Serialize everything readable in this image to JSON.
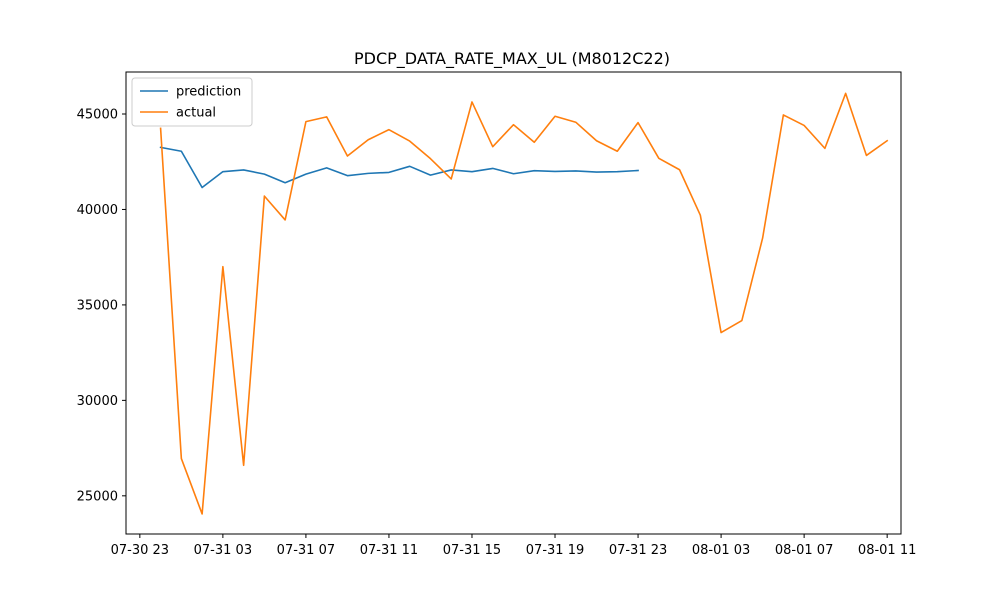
{
  "chart_data": {
    "type": "line",
    "title": "PDCP_DATA_RATE_MAX_UL (M8012C22)",
    "xlabel": "",
    "ylabel": "",
    "x_ticks": [
      "07-30 23",
      "07-31 03",
      "07-31 07",
      "07-31 11",
      "07-31 15",
      "07-31 19",
      "07-31 23",
      "08-01 03",
      "08-01 07",
      "08-01 11"
    ],
    "y_ticks": [
      25000,
      30000,
      35000,
      40000,
      45000
    ],
    "xlim": [
      "2023-07-30T22:20",
      "2023-08-01T11:40"
    ],
    "ylim": [
      23000,
      47200
    ],
    "legend_position": "upper-left",
    "series": [
      {
        "name": "prediction",
        "color": "#1f77b4",
        "x": [
          "2023-07-31T00:00",
          "2023-07-31T01:00",
          "2023-07-31T02:00",
          "2023-07-31T03:00",
          "2023-07-31T04:00",
          "2023-07-31T05:00",
          "2023-07-31T06:00",
          "2023-07-31T07:00",
          "2023-07-31T08:00",
          "2023-07-31T09:00",
          "2023-07-31T10:00",
          "2023-07-31T11:00",
          "2023-07-31T12:00",
          "2023-07-31T13:00",
          "2023-07-31T14:00",
          "2023-07-31T15:00",
          "2023-07-31T16:00",
          "2023-07-31T17:00",
          "2023-07-31T18:00",
          "2023-07-31T19:00",
          "2023-07-31T20:00",
          "2023-07-31T21:00",
          "2023-07-31T22:00",
          "2023-07-31T23:00"
        ],
        "values": [
          43250,
          43050,
          41150,
          41980,
          42070,
          41850,
          41400,
          41850,
          42180,
          41770,
          41890,
          41940,
          42260,
          41800,
          42070,
          41980,
          42150,
          41870,
          42030,
          41990,
          42020,
          41960,
          41980,
          42040
        ]
      },
      {
        "name": "actual",
        "color": "#ff7f0e",
        "x": [
          "2023-07-31T00:00",
          "2023-07-31T01:00",
          "2023-07-31T02:00",
          "2023-07-31T03:00",
          "2023-07-31T04:00",
          "2023-07-31T05:00",
          "2023-07-31T06:00",
          "2023-07-31T07:00",
          "2023-07-31T08:00",
          "2023-07-31T09:00",
          "2023-07-31T10:00",
          "2023-07-31T11:00",
          "2023-07-31T12:00",
          "2023-07-31T13:00",
          "2023-07-31T14:00",
          "2023-07-31T15:00",
          "2023-07-31T16:00",
          "2023-07-31T17:00",
          "2023-07-31T18:00",
          "2023-07-31T19:00",
          "2023-07-31T20:00",
          "2023-07-31T21:00",
          "2023-07-31T22:00",
          "2023-07-31T23:00",
          "2023-08-01T00:00",
          "2023-08-01T01:00",
          "2023-08-01T02:00",
          "2023-08-01T03:00",
          "2023-08-01T04:00",
          "2023-08-01T05:00",
          "2023-08-01T06:00",
          "2023-08-01T07:00",
          "2023-08-01T08:00",
          "2023-08-01T09:00",
          "2023-08-01T10:00",
          "2023-08-01T11:00"
        ],
        "values": [
          44250,
          26950,
          24050,
          37000,
          26600,
          40700,
          39450,
          44600,
          44850,
          42800,
          43650,
          44180,
          43580,
          42660,
          41600,
          45630,
          43290,
          44440,
          43520,
          44880,
          44570,
          43600,
          43050,
          44550,
          42680,
          42080,
          39700,
          33550,
          34180,
          38500,
          44950,
          44400,
          43200,
          46080,
          42830,
          43600
        ]
      }
    ]
  }
}
